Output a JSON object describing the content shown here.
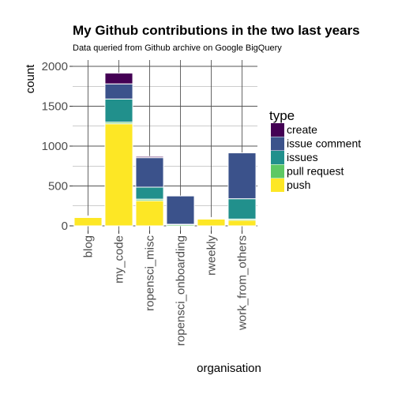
{
  "title": "My Github contributions in the two last years",
  "subtitle": "Data queried from Github archive on Google BigQuery",
  "legend_title": "type",
  "chart_data": {
    "type": "bar",
    "stacked": true,
    "title": "My Github contributions in the two last years",
    "subtitle": "Data queried from Github archive on Google BigQuery",
    "xlabel": "organisation",
    "ylabel": "count",
    "ylim": [
      0,
      2000
    ],
    "yticks": [
      0,
      500,
      1000,
      1500,
      2000
    ],
    "categories": [
      "blog",
      "my_code",
      "ropensci_misc",
      "ropensci_onboarding",
      "rweekly",
      "work_from_others"
    ],
    "series": [
      {
        "name": "push",
        "color": "#FDE725",
        "values": [
          105,
          1280,
          315,
          0,
          85,
          70
        ]
      },
      {
        "name": "pull request",
        "color": "#5DC863",
        "values": [
          5,
          20,
          20,
          15,
          10,
          15
        ]
      },
      {
        "name": "issues",
        "color": "#21908C",
        "values": [
          10,
          290,
          150,
          5,
          5,
          255
        ]
      },
      {
        "name": "issue comment",
        "color": "#3B528B",
        "values": [
          5,
          190,
          370,
          355,
          5,
          575
        ]
      },
      {
        "name": "create",
        "color": "#440154",
        "values": [
          0,
          135,
          15,
          0,
          0,
          0
        ]
      }
    ],
    "legend_order": [
      "create",
      "issue comment",
      "issues",
      "pull request",
      "push"
    ],
    "legend_position": "right",
    "grid": true
  }
}
